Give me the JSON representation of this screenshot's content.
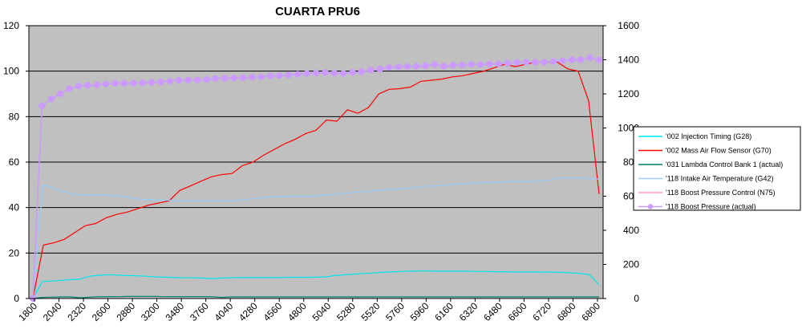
{
  "chart_data": {
    "type": "line",
    "title": "CUARTA PRU6",
    "xlabel": "",
    "ylabel": "",
    "y_left": {
      "min": 0,
      "max": 120,
      "ticks": [
        "0",
        "20",
        "40",
        "60",
        "80",
        "100",
        "120"
      ]
    },
    "y_right": {
      "min": 0,
      "max": 1600,
      "ticks": [
        "0",
        "200",
        "400",
        "600",
        "800",
        "1000",
        "1200",
        "1400",
        "1600"
      ]
    },
    "x_tick_labels": [
      "1800",
      "2040",
      "2320",
      "2600",
      "2880",
      "3200",
      "3480",
      "3760",
      "4040",
      "4280",
      "4560",
      "4800",
      "5040",
      "5280",
      "5520",
      "5760",
      "5960",
      "6160",
      "6320",
      "6480",
      "6600",
      "6720",
      "6800",
      "6800"
    ],
    "grid": "horizontal",
    "legend_position": "right",
    "plot_background": "#c0c0c0",
    "series": [
      {
        "name": "'002 Injection Timing (G28)",
        "axis": "left",
        "color": "#00e5ee",
        "marker": "none",
        "values": [
          0,
          7.5,
          7.7,
          8,
          8.3,
          8.5,
          9.8,
          10.2,
          10.5,
          10.3,
          10.1,
          10,
          9.8,
          9.5,
          9.4,
          9.2,
          9.1,
          9.1,
          9,
          8.7,
          9,
          9.1,
          9.2,
          9.2,
          9.2,
          9.2,
          9.2,
          9.3,
          9.3,
          9.3,
          9.4,
          9.5,
          10.1,
          10.4,
          10.7,
          11,
          11.2,
          11.5,
          11.7,
          11.9,
          12,
          12.1,
          12.1,
          12,
          12,
          12,
          12,
          11.9,
          11.9,
          11.8,
          11.8,
          11.7,
          11.7,
          11.7,
          11.6,
          11.6,
          11.5,
          11.3,
          11,
          10.5,
          6
        ]
      },
      {
        "name": "'002 Mass Air Flow Sensor (G70)",
        "axis": "left",
        "color": "#ff0000",
        "marker": "none",
        "values": [
          0,
          23.5,
          24.5,
          26,
          29,
          32,
          33,
          35.5,
          37,
          38,
          39.5,
          41,
          42,
          43,
          47.5,
          49.5,
          51.5,
          53.5,
          54.5,
          55,
          58.5,
          60,
          63,
          65.5,
          68,
          70,
          72.5,
          74,
          78.5,
          78,
          83,
          81.5,
          84,
          90,
          92,
          92.3,
          93,
          95.5,
          96,
          96.5,
          97.5,
          98,
          99,
          100,
          101.5,
          103,
          102,
          103,
          104,
          104,
          104,
          101,
          100,
          87,
          46
        ]
      },
      {
        "name": "'031 Lambda Control Bank 1 (actual)",
        "axis": "left",
        "color": "#00806b",
        "marker": "none",
        "values": [
          0,
          0.5,
          0.6,
          0.7,
          0.7,
          0.3,
          0.6,
          0.8,
          0.8,
          0.8,
          0.9,
          0.9,
          0.9,
          0.9,
          0.8,
          0.8,
          0.8,
          0.8,
          0.8,
          0.8,
          0.5,
          0.7,
          0.7,
          0.7,
          0.7,
          0.7,
          0.7,
          0.7,
          0.7,
          0.7,
          0.7,
          0.7,
          0.7,
          0.7,
          0.7,
          0.7,
          0.7,
          0.7,
          0.7,
          0.7,
          0.7,
          0.7,
          0.7,
          0.7,
          0.7,
          0.7,
          0.7,
          0.7,
          0.7,
          0.7,
          0.7,
          0.7,
          0.7,
          0.7,
          0.7,
          0.7,
          0.7,
          0.7,
          0.7,
          0.7,
          0.7
        ]
      },
      {
        "name": "'118 Intake Air Temperature (G42)",
        "axis": "left",
        "color": "#99ccff",
        "marker": "none",
        "values": [
          0,
          50,
          48.5,
          47,
          46,
          45.5,
          45.5,
          45.5,
          45.3,
          45,
          44,
          43.5,
          43.5,
          43.3,
          43,
          43,
          43,
          43,
          43,
          43,
          43,
          43.5,
          44,
          44.5,
          44.8,
          45,
          45,
          45,
          45,
          45.5,
          46,
          46.3,
          46.8,
          47,
          47.5,
          48,
          48,
          48.5,
          49,
          49.5,
          49.5,
          50,
          50.3,
          50.5,
          51,
          51,
          51,
          51.5,
          51.5,
          51.5,
          51.7,
          52,
          53,
          53,
          53,
          52.8,
          52.5
        ]
      },
      {
        "name": "'118 Boost Pressure Control (N75)",
        "axis": "left",
        "color": "#ff99cc",
        "marker": "none",
        "values": []
      },
      {
        "name": "'118 Boost Pressure (actual)",
        "axis": "right",
        "color": "#cc99ff",
        "marker": "circle",
        "values": [
          0,
          1130,
          1170,
          1200,
          1230,
          1245,
          1250,
          1252,
          1258,
          1262,
          1262,
          1263,
          1265,
          1268,
          1270,
          1275,
          1280,
          1282,
          1282,
          1285,
          1290,
          1292,
          1293,
          1295,
          1298,
          1300,
          1305,
          1308,
          1310,
          1315,
          1320,
          1322,
          1325,
          1322,
          1320,
          1325,
          1330,
          1340,
          1345,
          1355,
          1358,
          1360,
          1362,
          1365,
          1372,
          1362,
          1368,
          1370,
          1372,
          1372,
          1374,
          1376,
          1380,
          1384,
          1386,
          1386,
          1386,
          1390,
          1395,
          1400,
          1400,
          1412,
          1398
        ]
      }
    ]
  }
}
